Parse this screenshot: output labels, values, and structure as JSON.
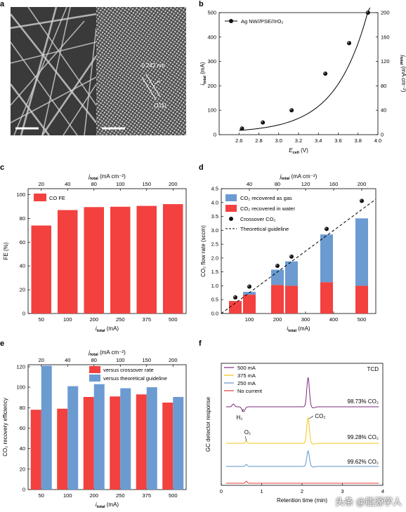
{
  "panel_labels": [
    "a",
    "b",
    "c",
    "d",
    "e",
    "f"
  ],
  "panel_a": {
    "spacing_label": "0.242 nm",
    "plane_label": "(111)"
  },
  "watermark": "头条 @能源学人",
  "colors": {
    "red": "#f2413f",
    "blue": "#6b9bd1",
    "purple": "#7a2a7f",
    "yellow": "#f5c518",
    "lightblue": "#5f95c9",
    "darkred": "#e53935"
  },
  "chart_data": [
    {
      "id": "b",
      "type": "scatter",
      "title": "",
      "legend": [
        "Ag NW//PSE//IrO₂"
      ],
      "legend_position": "top-left",
      "xlabel_main": "E",
      "xlabel_sub": "cell",
      "xlabel_unit": " (V)",
      "ylabel_main": "i",
      "ylabel_sub": "total",
      "ylabel_unit": " (mA)",
      "y2label_main": "j",
      "y2label_sub": "total",
      "y2label_unit": " (mA cm⁻²)",
      "xlim": [
        2.4,
        4.0
      ],
      "xticks": [
        "2.6",
        "2.8",
        "3.0",
        "3.2",
        "3.4",
        "3.6",
        "3.8",
        "4.0"
      ],
      "ylim": [
        0,
        500
      ],
      "yticks": [
        "0",
        "100",
        "200",
        "300",
        "400",
        "500"
      ],
      "y2lim": [
        0,
        200
      ],
      "y2ticks": [
        "0",
        "40",
        "80",
        "120",
        "160",
        "200"
      ],
      "x": [
        2.63,
        2.84,
        3.13,
        3.47,
        3.71,
        3.9
      ],
      "y": [
        25,
        50,
        100,
        250,
        375,
        500
      ]
    },
    {
      "id": "c",
      "type": "bar",
      "legend": [
        "CO FE"
      ],
      "legend_position": "top-left",
      "categories": [
        "50",
        "100",
        "200",
        "250",
        "375",
        "500"
      ],
      "top_axis_label_main": "j",
      "top_axis_label_sub": "total",
      "top_axis_label_unit": " (mA cm⁻²)",
      "top_ticks": [
        "20",
        "40",
        "80",
        "100",
        "150",
        "200"
      ],
      "xlabel_main": "i",
      "xlabel_sub": "total",
      "xlabel_unit": " (mA)",
      "ylabel": "FE (%)",
      "ylim": [
        0,
        105
      ],
      "yticks": [
        "0",
        "20",
        "40",
        "60",
        "80",
        "100"
      ],
      "values": [
        74,
        87,
        89.5,
        89.8,
        90.5,
        92
      ]
    },
    {
      "id": "d",
      "type": "bar",
      "legend": [
        "CO₂ recovered as gas",
        "CO₂ recovered in water",
        "Crossover CO₂",
        "Theoretical guideline"
      ],
      "legend_position": "top-left",
      "top_axis_label_main": "j",
      "top_axis_label_sub": "total",
      "top_axis_label_unit": " (mA cm⁻²)",
      "top_ticks": [
        "40",
        "80",
        "120",
        "160",
        "200"
      ],
      "top_tick_values": [
        100,
        200,
        300,
        400,
        500
      ],
      "xlabel_main": "i",
      "xlabel_sub": "total",
      "xlabel_unit": " (mA)",
      "xlim": [
        0,
        550
      ],
      "xticks": [
        "100",
        "200",
        "300",
        "400",
        "500"
      ],
      "ylabel": "CO₂ flow rate (sccm)",
      "ylim": [
        0,
        4.5
      ],
      "yticks": [
        "0.0",
        "0.5",
        "1.0",
        "1.5",
        "2.0",
        "2.5",
        "3.0",
        "3.5",
        "4.0",
        "4.5"
      ],
      "x": [
        50,
        100,
        200,
        250,
        375,
        500
      ],
      "series": [
        {
          "name": "CO₂ recovered in water",
          "values": [
            0.45,
            0.68,
            1.03,
            1.0,
            1.13,
            1.0
          ]
        },
        {
          "name": "CO₂ recovered as gas",
          "values": [
            0.0,
            0.1,
            0.55,
            0.88,
            1.72,
            2.43
          ]
        }
      ],
      "crossover": [
        0.58,
        0.97,
        1.72,
        2.05,
        3.05,
        4.06
      ],
      "guideline": {
        "x": [
          0,
          550
        ],
        "y": [
          0,
          4.12
        ]
      }
    },
    {
      "id": "e",
      "type": "bar",
      "legend": [
        "versus crossover rate",
        "versus theoretical guideline"
      ],
      "legend_position": "top-right",
      "categories": [
        "50",
        "100",
        "200",
        "250",
        "375",
        "500"
      ],
      "top_axis_label_main": "j",
      "top_axis_label_sub": "total",
      "top_axis_label_unit": " (mA cm⁻²)",
      "top_ticks": [
        "20",
        "40",
        "80",
        "100",
        "150",
        "200"
      ],
      "xlabel_main": "i",
      "xlabel_sub": "total",
      "xlabel_unit": " (mA)",
      "ylabel": "CO₂ recovery efficiency",
      "ylim": [
        0,
        122
      ],
      "yticks": [
        "0",
        "20",
        "40",
        "60",
        "80",
        "100",
        "120"
      ],
      "series": [
        {
          "name": "versus crossover rate",
          "values": [
            78,
            79,
            90.5,
            91,
            93,
            85
          ]
        },
        {
          "name": "versus theoretical guideline",
          "values": [
            121,
            101,
            103,
            99,
            100,
            90.5
          ]
        }
      ]
    },
    {
      "id": "f",
      "type": "line",
      "annotation": "TCD",
      "legend": [
        "500 mA",
        "375 mA",
        "250 mA",
        "No current"
      ],
      "legend_position": "top-left",
      "xlabel": "Retention time (min)",
      "ylabel": "GC detector response",
      "xlim": [
        0,
        4
      ],
      "xticks": [
        "0",
        "1",
        "2",
        "3",
        "4"
      ],
      "peak_labels": [
        "H₂",
        "O₂",
        "CO₂"
      ],
      "purities": [
        "98.73% CO₂",
        "99.28% CO₂",
        "99.62% CO₂"
      ]
    }
  ]
}
